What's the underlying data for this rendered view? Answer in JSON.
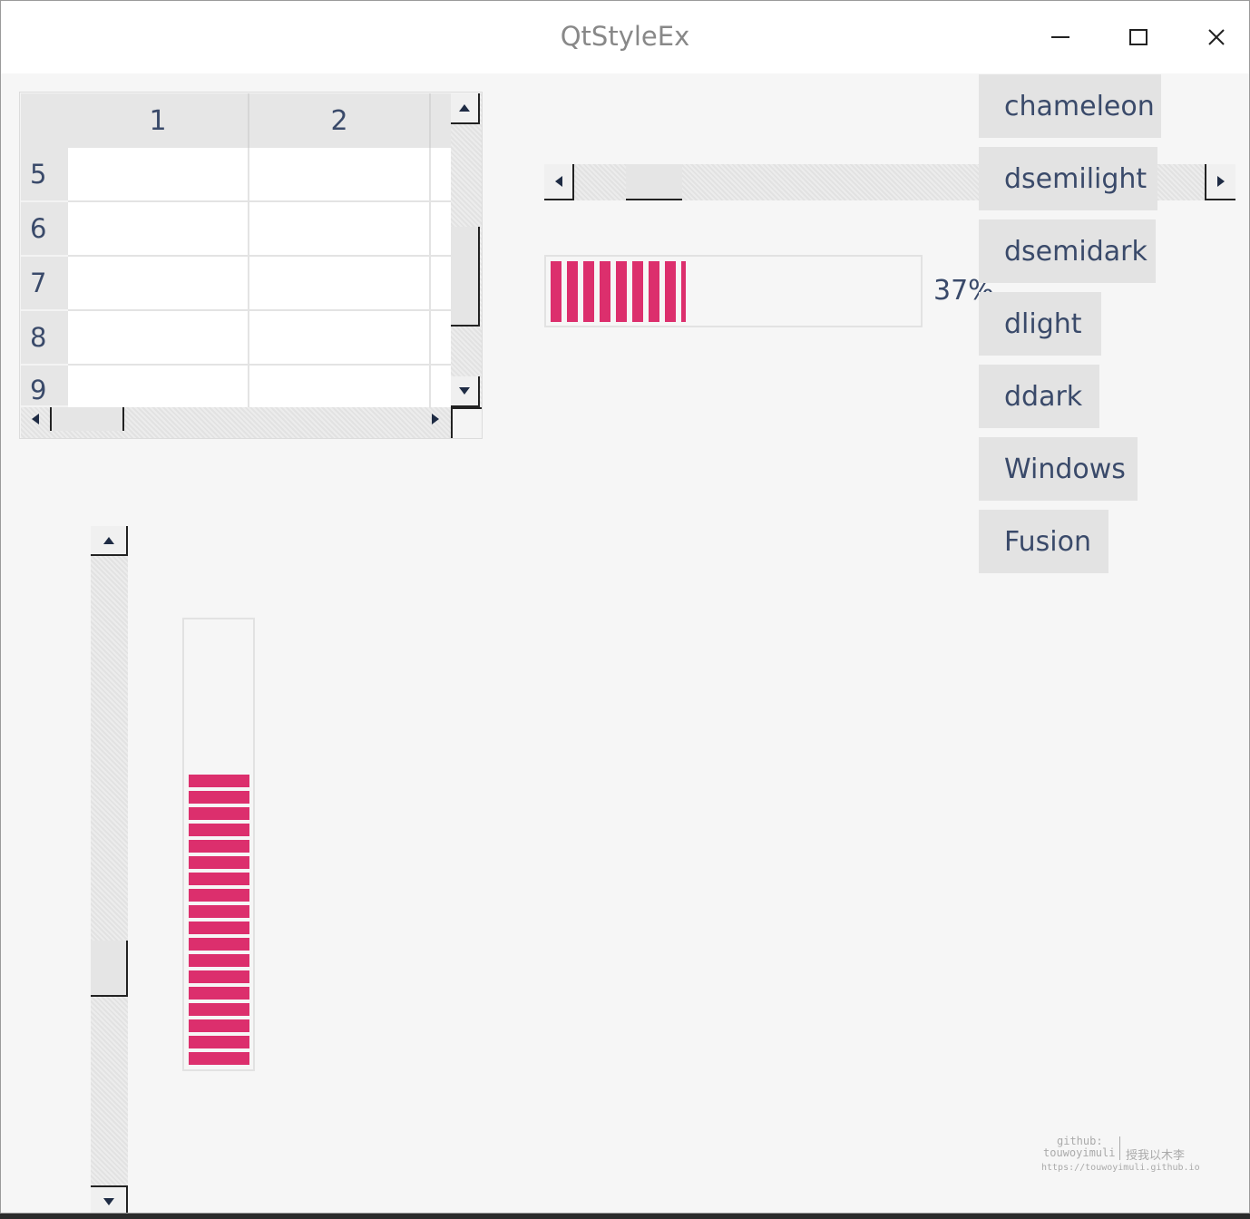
{
  "window": {
    "title": "QtStyleEx"
  },
  "titlebar": {
    "minimize_icon": "minimize-icon",
    "maximize_icon": "maximize-icon",
    "close_icon": "close-icon"
  },
  "table": {
    "columns": [
      "1",
      "2"
    ],
    "rows": [
      "5",
      "6",
      "7",
      "8",
      "9"
    ]
  },
  "horizontal_scrollbar": {
    "position": 0.08
  },
  "horizontal_progress": {
    "value": 37,
    "text": "37%"
  },
  "vertical_scrollbar": {
    "position": 0.75
  },
  "vertical_progress": {
    "value": 66
  },
  "style_buttons": [
    "chameleon",
    "dsemilight",
    "dsemidark",
    "dlight",
    "ddark",
    "Windows",
    "Fusion"
  ],
  "watermark": {
    "line1": "github:",
    "line2": "touwoyimuli",
    "line3": "https://touwoyimuli.github.io",
    "cn": "授我以木李"
  },
  "colors": {
    "accent": "#dc2f6d",
    "text": "#3a4a6a"
  }
}
